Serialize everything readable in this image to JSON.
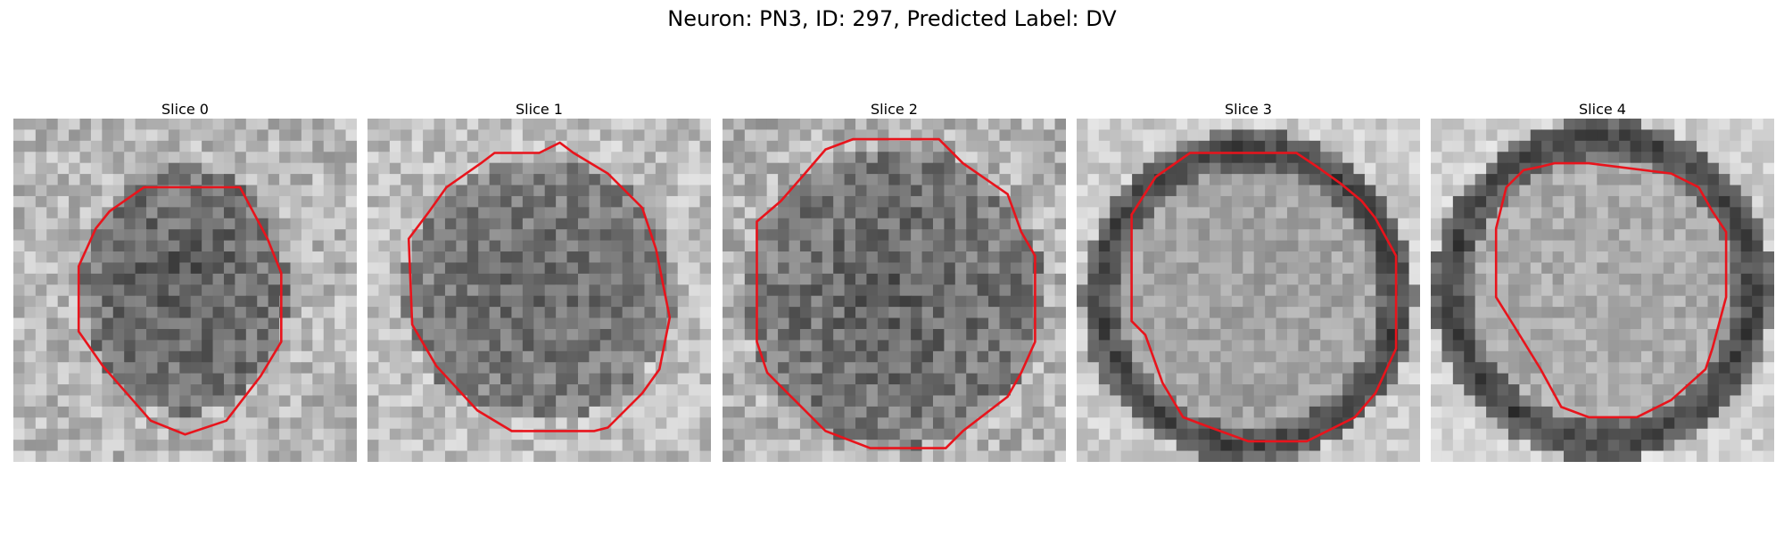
{
  "title": "Neuron: PN3, ID: 297, Predicted Label: DV",
  "panels": [
    {
      "label": "Slice 0"
    },
    {
      "label": "Slice 1"
    },
    {
      "label": "Slice 2"
    },
    {
      "label": "Slice 3"
    },
    {
      "label": "Slice 4"
    }
  ],
  "colors": {
    "contour": "#e8141c",
    "background": "#ffffff"
  }
}
